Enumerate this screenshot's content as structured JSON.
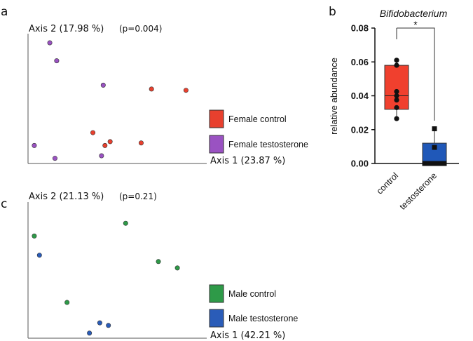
{
  "colors": {
    "female_control": "#e8402e",
    "female_testosterone": "#9a52c2",
    "male_control": "#2e9a48",
    "male_testosterone": "#2a5cb8",
    "box_control": "#f0402e",
    "box_testosterone": "#2058b8"
  },
  "chart_data": [
    {
      "id": "a",
      "panel_label": "a",
      "type": "scatter",
      "title": "",
      "xlabel": "Axis 1 (23.87 %)",
      "ylabel": "Axis 2 (17.98 %)",
      "annotation": "(p=0.004)",
      "xlim": [
        0,
        100
      ],
      "ylim": [
        0,
        100
      ],
      "legend_position": "right",
      "series": [
        {
          "name": "Female control",
          "color_key": "female_control",
          "points": [
            {
              "x": 70,
              "y": 58
            },
            {
              "x": 90,
              "y": 57
            },
            {
              "x": 36,
              "y": 24
            },
            {
              "x": 46,
              "y": 17
            },
            {
              "x": 43,
              "y": 14
            },
            {
              "x": 64,
              "y": 16
            }
          ]
        },
        {
          "name": "Female testosterone",
          "color_key": "female_testosterone",
          "points": [
            {
              "x": 11,
              "y": 94
            },
            {
              "x": 15,
              "y": 80
            },
            {
              "x": 42,
              "y": 61
            },
            {
              "x": 2,
              "y": 14
            },
            {
              "x": 14,
              "y": 4
            },
            {
              "x": 41,
              "y": 6
            }
          ]
        }
      ]
    },
    {
      "id": "b",
      "panel_label": "b",
      "type": "box",
      "title": "Bifidobacterium",
      "ylabel": "relative abundance",
      "ylim": [
        0,
        0.08
      ],
      "yticks": [
        "0.00",
        "0.02",
        "0.04",
        "0.06",
        "0.08"
      ],
      "significance": "*",
      "categories": [
        "control",
        "testosterone"
      ],
      "groups": [
        {
          "name": "control",
          "color_key": "box_control",
          "marker": "circle",
          "min": 0.0265,
          "q1": 0.032,
          "median": 0.04,
          "q3": 0.058,
          "max": 0.061,
          "points": [
            0.061,
            0.058,
            0.0425,
            0.04,
            0.0375,
            0.033,
            0.0265
          ]
        },
        {
          "name": "testosterone",
          "color_key": "box_testosterone",
          "marker": "square",
          "min": 0.0,
          "q1": 0.0,
          "median": 0.0,
          "q3": 0.012,
          "max": 0.0205,
          "points": [
            0.0205,
            0.0095,
            0.0,
            0.0,
            0.0,
            0.0,
            0.0
          ]
        }
      ]
    },
    {
      "id": "c",
      "panel_label": "c",
      "type": "scatter",
      "title": "",
      "xlabel": "Axis 1 (42.21 %)",
      "ylabel": "Axis 2 (21.13 %)",
      "annotation": "(p=0.21)",
      "xlim": [
        0,
        100
      ],
      "ylim": [
        0,
        100
      ],
      "legend_position": "right",
      "series": [
        {
          "name": "Male control",
          "color_key": "male_control",
          "points": [
            {
              "x": 55,
              "y": 90
            },
            {
              "x": 2,
              "y": 80
            },
            {
              "x": 74,
              "y": 60
            },
            {
              "x": 85,
              "y": 55
            },
            {
              "x": 21,
              "y": 28
            }
          ]
        },
        {
          "name": "Male testosterone",
          "color_key": "male_testosterone",
          "points": [
            {
              "x": 5,
              "y": 65
            },
            {
              "x": 40,
              "y": 12
            },
            {
              "x": 45,
              "y": 10
            },
            {
              "x": 34,
              "y": 4
            }
          ]
        }
      ]
    }
  ]
}
